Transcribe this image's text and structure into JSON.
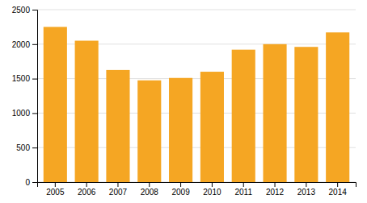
{
  "chart_data": {
    "type": "bar",
    "categories": [
      "2005",
      "2006",
      "2007",
      "2008",
      "2009",
      "2010",
      "2011",
      "2012",
      "2013",
      "2014"
    ],
    "values": [
      2250,
      2050,
      1625,
      1475,
      1510,
      1600,
      1920,
      2000,
      1960,
      2170
    ],
    "color": "#F5A623",
    "ylim": [
      0,
      2500
    ],
    "yticks": [
      0,
      500,
      1000,
      1500,
      2000,
      2500
    ],
    "grid": true
  }
}
